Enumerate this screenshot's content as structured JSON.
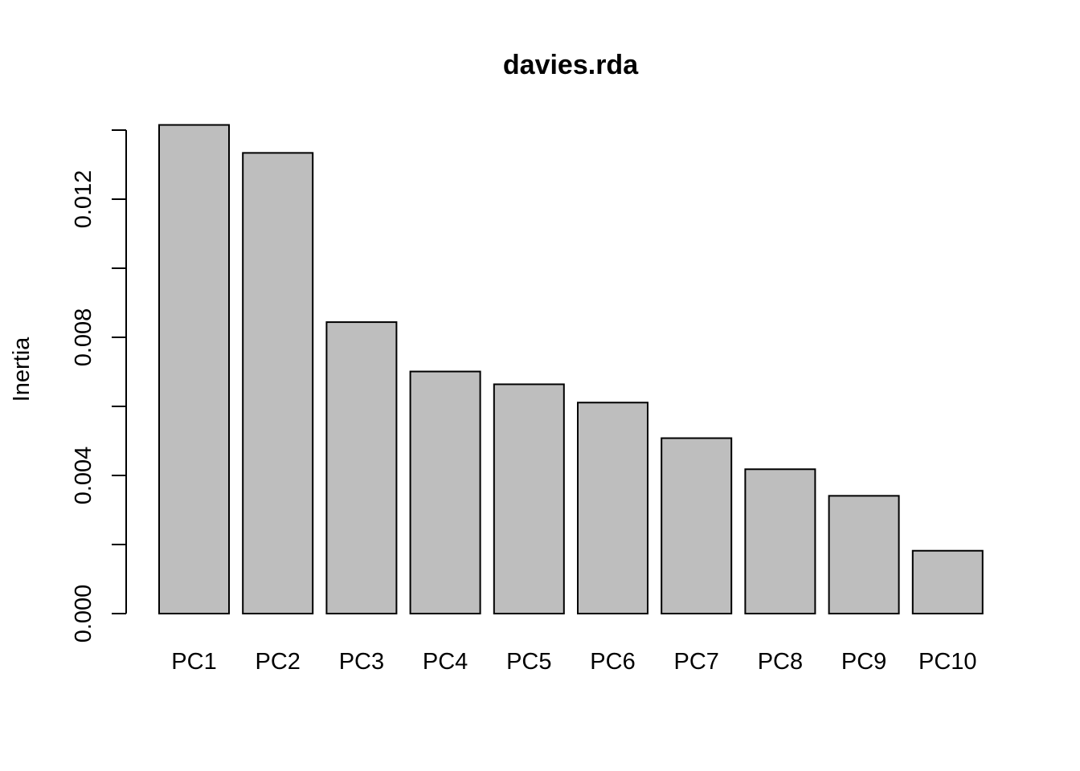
{
  "chart_data": {
    "type": "bar",
    "title": "davies.rda",
    "xlabel": "",
    "ylabel": "Inertia",
    "categories": [
      "PC1",
      "PC2",
      "PC3",
      "PC4",
      "PC5",
      "PC6",
      "PC7",
      "PC8",
      "PC9",
      "PC10"
    ],
    "values": [
      0.01415,
      0.01334,
      0.00844,
      0.00701,
      0.00664,
      0.00611,
      0.00508,
      0.00418,
      0.00341,
      0.00182
    ],
    "ylim": [
      0,
      0.014
    ],
    "yticks": [
      0.0,
      0.002,
      0.004,
      0.006,
      0.008,
      0.01,
      0.012,
      0.014
    ],
    "ytick_labels": [
      "0.000",
      "",
      "0.004",
      "",
      "0.008",
      "",
      "0.012",
      ""
    ],
    "grid": false,
    "legend": "none",
    "colors": {
      "bar_fill": "#bebebe",
      "bar_stroke": "#000000"
    }
  }
}
